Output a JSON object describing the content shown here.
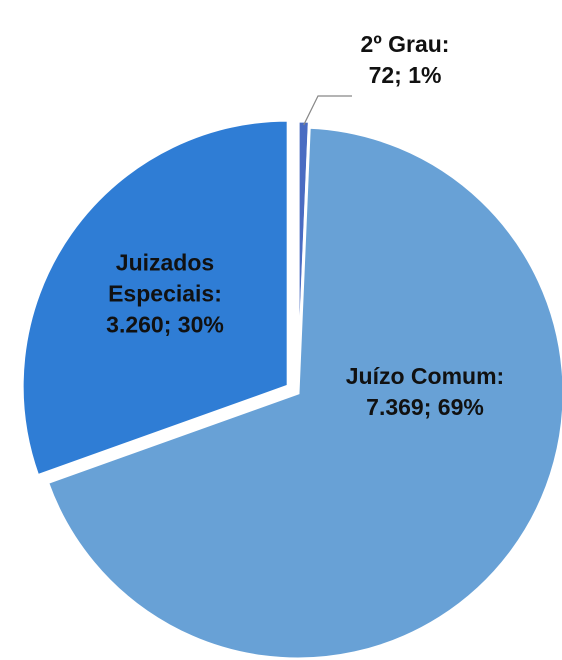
{
  "chart_data": {
    "type": "pie",
    "categories": [
      "2º Grau:",
      "Juízo Comum:",
      "Juizados Especiais:"
    ],
    "values": [
      72,
      7369,
      3260
    ],
    "value_labels": [
      "72; 1%",
      "7.369; 69%",
      "3.260; 30%"
    ],
    "colors": [
      "#4a6cc2",
      "#68a1d6",
      "#2f7dd5"
    ]
  }
}
